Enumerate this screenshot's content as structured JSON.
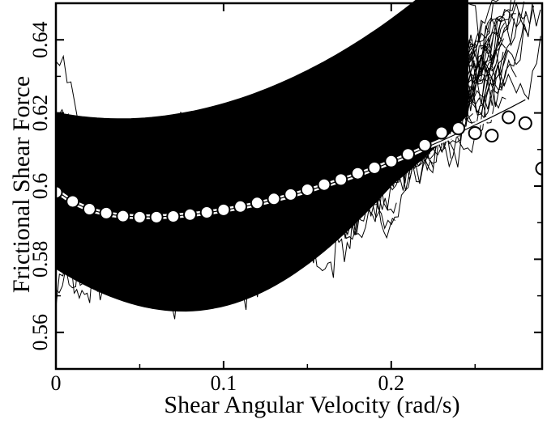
{
  "chart_data": {
    "type": "scatter",
    "title": "",
    "xlabel": "Shear Angular Velocity (rad/s)",
    "ylabel": "Frictional Shear Force",
    "xlim": [
      0,
      0.29
    ],
    "ylim": [
      0.55,
      0.65
    ],
    "x_ticks": [
      0,
      0.1,
      0.2
    ],
    "x_tick_labels": [
      "0",
      "0.1",
      "0.2"
    ],
    "y_ticks": [
      0.56,
      0.58,
      0.6,
      0.62,
      0.64
    ],
    "y_tick_labels": [
      "0.56",
      "0.58",
      "0.6",
      "0.62",
      "0.64"
    ],
    "grid": false,
    "legend": "none",
    "colors": {
      "background": "#ffffff",
      "traces": "#000000",
      "markers_fill": "#ffffff",
      "markers_stroke": "#000000",
      "fit_line": "#ffffff"
    },
    "series": [
      {
        "type": "scatter",
        "marker": "open-circle",
        "x": [
          0,
          0.01,
          0.02,
          0.03,
          0.04,
          0.05,
          0.06,
          0.07,
          0.08,
          0.09,
          0.1,
          0.11,
          0.12,
          0.13,
          0.14,
          0.15,
          0.16,
          0.17,
          0.18,
          0.19,
          0.2,
          0.21,
          0.22,
          0.23,
          0.24,
          0.25,
          0.26,
          0.27,
          0.28,
          0.29
        ],
        "y": [
          0.5983,
          0.5958,
          0.5937,
          0.5926,
          0.5918,
          0.5915,
          0.5915,
          0.5917,
          0.5922,
          0.5928,
          0.5935,
          0.5944,
          0.5954,
          0.5965,
          0.5977,
          0.599,
          0.6004,
          0.6018,
          0.6035,
          0.605,
          0.6068,
          0.6087,
          0.6112,
          0.6146,
          0.6158,
          0.6145,
          0.6138,
          0.6188,
          0.6172,
          0.6048
        ]
      },
      {
        "type": "line",
        "style": "fit",
        "x": [
          0,
          0.01,
          0.02,
          0.03,
          0.04,
          0.05,
          0.06,
          0.07,
          0.08,
          0.09,
          0.1,
          0.11,
          0.12,
          0.13,
          0.14,
          0.15,
          0.16,
          0.17,
          0.18,
          0.19,
          0.2,
          0.21,
          0.22,
          0.23,
          0.24,
          0.25,
          0.26,
          0.27,
          0.28
        ],
        "y": [
          0.5988,
          0.5956,
          0.5936,
          0.5924,
          0.5918,
          0.5916,
          0.5916,
          0.5918,
          0.5922,
          0.5927,
          0.5934,
          0.5942,
          0.5951,
          0.5962,
          0.5974,
          0.5987,
          0.6001,
          0.6016,
          0.6031,
          0.6048,
          0.6066,
          0.6084,
          0.6104,
          0.6124,
          0.6145,
          0.6167,
          0.6189,
          0.6212,
          0.6236
        ]
      }
    ],
    "background_traces": "many dense black noisy trajectories spanning x 0–0.29, y 0.55–0.645"
  }
}
